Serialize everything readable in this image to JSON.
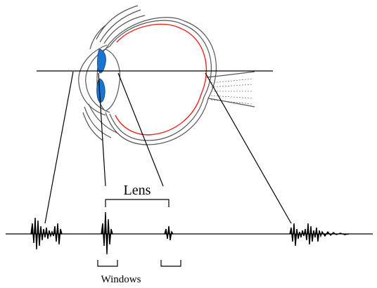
{
  "labels": {
    "lens": "Lens",
    "windows": "Windows"
  },
  "colors": {
    "lens_fill": "#1a75d1",
    "retina": "#e8261e",
    "ink": "#000000",
    "tissue": "#555555"
  }
}
